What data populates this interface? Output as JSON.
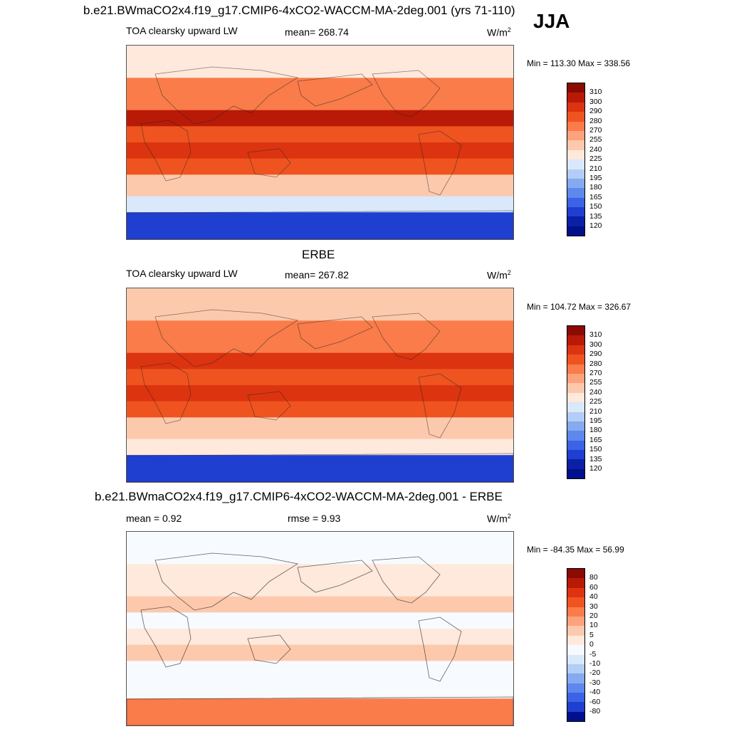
{
  "header": {
    "title": "b.e21.BWmaCO2x4.f19_g17.CMIP6-4xCO2-WACCM-MA-2deg.001 (yrs 71-110)",
    "season": "JJA"
  },
  "panels": [
    {
      "id": "model",
      "heading": "",
      "variable": "TOA clearsky upward LW",
      "mean_label": "mean= 268.74",
      "rmse_label": "",
      "units": "W/m",
      "units_sup": "2",
      "minmax": "Min = 113.30 Max = 338.56"
    },
    {
      "id": "obs",
      "heading": "ERBE",
      "variable": "TOA clearsky upward LW",
      "mean_label": "mean= 267.82",
      "rmse_label": "",
      "units": "W/m",
      "units_sup": "2",
      "minmax": "Min = 104.72 Max = 326.67"
    },
    {
      "id": "diff",
      "heading": "b.e21.BWmaCO2x4.f19_g17.CMIP6-4xCO2-WACCM-MA-2deg.001 - ERBE",
      "variable": "",
      "mean_label": "mean =   0.92",
      "rmse_label": "rmse =   9.93",
      "units": "W/m",
      "units_sup": "2",
      "minmax": "Min = -84.35 Max =  56.99"
    }
  ],
  "chart_data": [
    {
      "type": "heatmap",
      "title": "TOA clearsky upward LW",
      "subtitle": "b.e21.BWmaCO2x4.f19_g17.CMIP6-4xCO2-WACCM-MA-2deg.001 (yrs 71-110) JJA",
      "units": "W/m2",
      "mean": 268.74,
      "min": 113.3,
      "max": 338.56,
      "colorbar_levels": [
        310,
        300,
        290,
        280,
        270,
        255,
        240,
        225,
        210,
        195,
        180,
        165,
        150,
        135,
        120
      ],
      "colorbar_colors": [
        "#8b0a03",
        "#b81a07",
        "#dc3410",
        "#ef5420",
        "#f97c4a",
        "#fca27c",
        "#fdc9ad",
        "#fee9dc",
        "#d9e8fb",
        "#b3cdf6",
        "#86aaf0",
        "#5f88ec",
        "#3b63e6",
        "#1f3fd1",
        "#0a20a6",
        "#00108a"
      ],
      "latitude_bands": [
        {
          "band": "90N-60N",
          "approx_value": 235
        },
        {
          "band": "60N-30N",
          "approx_value": 275
        },
        {
          "band": "30N-15N",
          "approx_value": 300
        },
        {
          "band": "15N-0",
          "approx_value": 285
        },
        {
          "band": "0-15S",
          "approx_value": 295
        },
        {
          "band": "15S-30S",
          "approx_value": 280
        },
        {
          "band": "30S-50S",
          "approx_value": 250
        },
        {
          "band": "50S-65S",
          "approx_value": 215
        },
        {
          "band": "65S-90S",
          "approx_value": 140
        }
      ]
    },
    {
      "type": "heatmap",
      "title": "TOA clearsky upward LW",
      "subtitle": "ERBE",
      "units": "W/m2",
      "mean": 267.82,
      "min": 104.72,
      "max": 326.67,
      "colorbar_levels": [
        310,
        300,
        290,
        280,
        270,
        255,
        240,
        225,
        210,
        195,
        180,
        165,
        150,
        135,
        120
      ],
      "colorbar_colors": [
        "#8b0a03",
        "#b81a07",
        "#dc3410",
        "#ef5420",
        "#f97c4a",
        "#fca27c",
        "#fdc9ad",
        "#fee9dc",
        "#d9e8fb",
        "#b3cdf6",
        "#86aaf0",
        "#5f88ec",
        "#3b63e6",
        "#1f3fd1",
        "#0a20a6",
        "#00108a"
      ],
      "latitude_bands": [
        {
          "band": "90N-60N",
          "approx_value": 240
        },
        {
          "band": "60N-30N",
          "approx_value": 275
        },
        {
          "band": "30N-15N",
          "approx_value": 295
        },
        {
          "band": "15N-0",
          "approx_value": 285
        },
        {
          "band": "0-15S",
          "approx_value": 290
        },
        {
          "band": "15S-30S",
          "approx_value": 280
        },
        {
          "band": "30S-50S",
          "approx_value": 250
        },
        {
          "band": "50S-65S",
          "approx_value": 230
        },
        {
          "band": "65S-90S",
          "approx_value": 135
        }
      ]
    },
    {
      "type": "heatmap",
      "title": "b.e21.BWmaCO2x4.f19_g17.CMIP6-4xCO2-WACCM-MA-2deg.001 - ERBE",
      "units": "W/m2",
      "mean": 0.92,
      "rmse": 9.93,
      "min": -84.35,
      "max": 56.99,
      "colorbar_levels": [
        80,
        60,
        40,
        30,
        20,
        10,
        5,
        0,
        -5,
        -10,
        -20,
        -30,
        -40,
        -60,
        -80
      ],
      "colorbar_colors": [
        "#8b0a03",
        "#b81a07",
        "#dc3410",
        "#ef5420",
        "#f97c4a",
        "#fca27c",
        "#fdc9ad",
        "#fee9dc",
        "#f7fbff",
        "#d9e8fb",
        "#b3cdf6",
        "#86aaf0",
        "#5f88ec",
        "#3b63e6",
        "#1f3fd1",
        "#00108a"
      ],
      "latitude_bands": [
        {
          "band": "90N-60N",
          "approx_value": -5
        },
        {
          "band": "60N-30N",
          "approx_value": 3
        },
        {
          "band": "30N-15N",
          "approx_value": 5
        },
        {
          "band": "15N-0",
          "approx_value": -5
        },
        {
          "band": "0-15S",
          "approx_value": 2
        },
        {
          "band": "15S-30S",
          "approx_value": 5
        },
        {
          "band": "30S-50S",
          "approx_value": -3
        },
        {
          "band": "50S-65S",
          "approx_value": -5
        },
        {
          "band": "65S-90S",
          "approx_value": 20
        }
      ]
    }
  ]
}
